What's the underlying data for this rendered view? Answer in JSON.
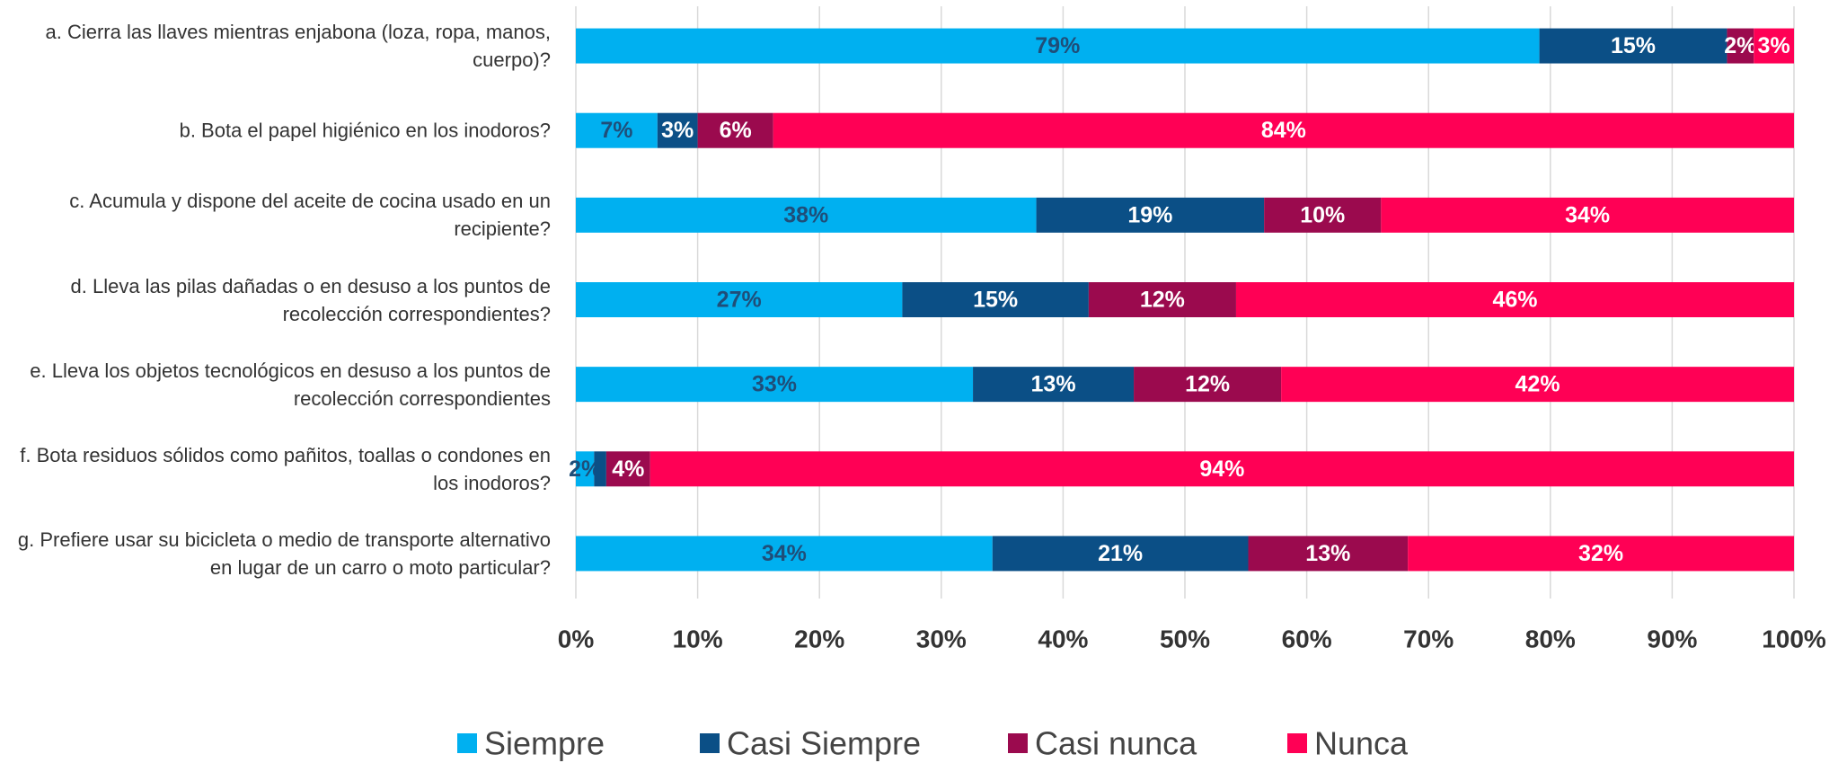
{
  "chart_data": {
    "type": "bar",
    "orientation": "horizontal",
    "stacked": true,
    "categories": [
      "a. Cierra las llaves mientras enjabona (loza, ropa, manos, cuerpo)?",
      "b. Bota el papel higiénico en los inodoros?",
      "c. Acumula y dispone del aceite de cocina usado en un recipiente?",
      "d. Lleva las pilas dañadas o en desuso a los puntos de recolección correspondientes?",
      "e. Lleva los objetos tecnológicos en desuso a los puntos de recolección correspondientes",
      "f. Bota residuos sólidos como pañitos, toallas o condones en los inodoros?",
      "g. Prefiere usar su bicicleta o medio de transporte alternativo en lugar de un carro o moto particular?"
    ],
    "series": [
      {
        "name": "Siempre",
        "color": "#00b0f0",
        "label_color": "#1f4e79",
        "values": [
          79.1,
          6.7,
          37.8,
          26.8,
          32.6,
          1.5,
          34.2
        ],
        "value_labels": [
          "79%",
          "7%",
          "38%",
          "27%",
          "33%",
          "2%",
          "34%"
        ]
      },
      {
        "name": "Casi Siempre",
        "color": "#0b4f86",
        "label_color": "#ffffff",
        "values": [
          15.4,
          3.3,
          18.7,
          15.3,
          13.2,
          1.0,
          21.0
        ],
        "value_labels": [
          "15%",
          "3%",
          "19%",
          "15%",
          "13%",
          null,
          "21%"
        ]
      },
      {
        "name": "Casi nunca",
        "color": "#9b0a4e",
        "label_color": "#ffffff",
        "values": [
          2.2,
          6.2,
          9.6,
          12.1,
          12.1,
          3.6,
          13.1
        ],
        "value_labels": [
          "2%",
          "6%",
          "10%",
          "12%",
          "12%",
          "4%",
          "13%"
        ]
      },
      {
        "name": "Nunca",
        "color": "#ff0055",
        "label_color": "#ffffff",
        "values": [
          3.3,
          83.8,
          33.9,
          45.8,
          42.1,
          93.9,
          31.7
        ],
        "value_labels": [
          "3%",
          "84%",
          "34%",
          "46%",
          "42%",
          "94%",
          "32%"
        ]
      }
    ],
    "xlim": [
      0,
      100
    ],
    "xticks": [
      {
        "value": 0,
        "label": "0%"
      },
      {
        "value": 10,
        "label": "10%"
      },
      {
        "value": 20,
        "label": "20%"
      },
      {
        "value": 30,
        "label": "30%"
      },
      {
        "value": 40,
        "label": "40%"
      },
      {
        "value": 50,
        "label": "50%"
      },
      {
        "value": 60,
        "label": "60%"
      },
      {
        "value": 70,
        "label": "70%"
      },
      {
        "value": 80,
        "label": "80%"
      },
      {
        "value": 90,
        "label": "90%"
      },
      {
        "value": 100,
        "label": "100%"
      }
    ],
    "grid": true,
    "legend": "bottom"
  }
}
